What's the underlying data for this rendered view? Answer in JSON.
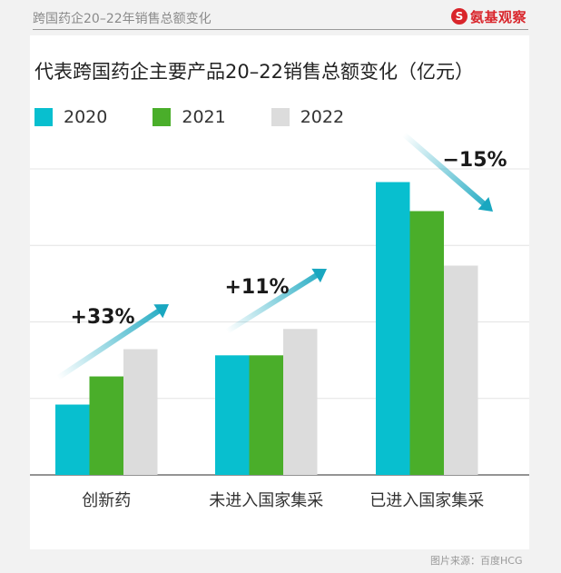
{
  "header": {
    "caption": "跨国药企20–22年销售总额变化",
    "brand_icon": "S",
    "brand_name": "氨基观察"
  },
  "footer": {
    "source": "图片来源：百度HCG"
  },
  "colors": {
    "s2020": "#08bfcf",
    "s2021": "#4aae2a",
    "s2022": "#dcdcdc",
    "arrow": "#19a7c0"
  },
  "chart_data": {
    "type": "bar",
    "title": "代表跨国药企主要产品20–22销售总额变化（亿元）",
    "categories": [
      "创新药",
      "未进入国家集采",
      "已进入国家集采"
    ],
    "series": [
      {
        "name": "2020",
        "values": [
          80,
          136,
          333
        ]
      },
      {
        "name": "2021",
        "values": [
          112,
          136,
          300
        ]
      },
      {
        "name": "2022",
        "values": [
          143,
          166,
          238
        ]
      }
    ],
    "annotations": [
      "+33%",
      "+11%",
      "−15%"
    ],
    "ylim": [
      0,
      380
    ],
    "gridlines": [
      0,
      87,
      174,
      261,
      348
    ],
    "xlabel": "",
    "ylabel": ""
  }
}
